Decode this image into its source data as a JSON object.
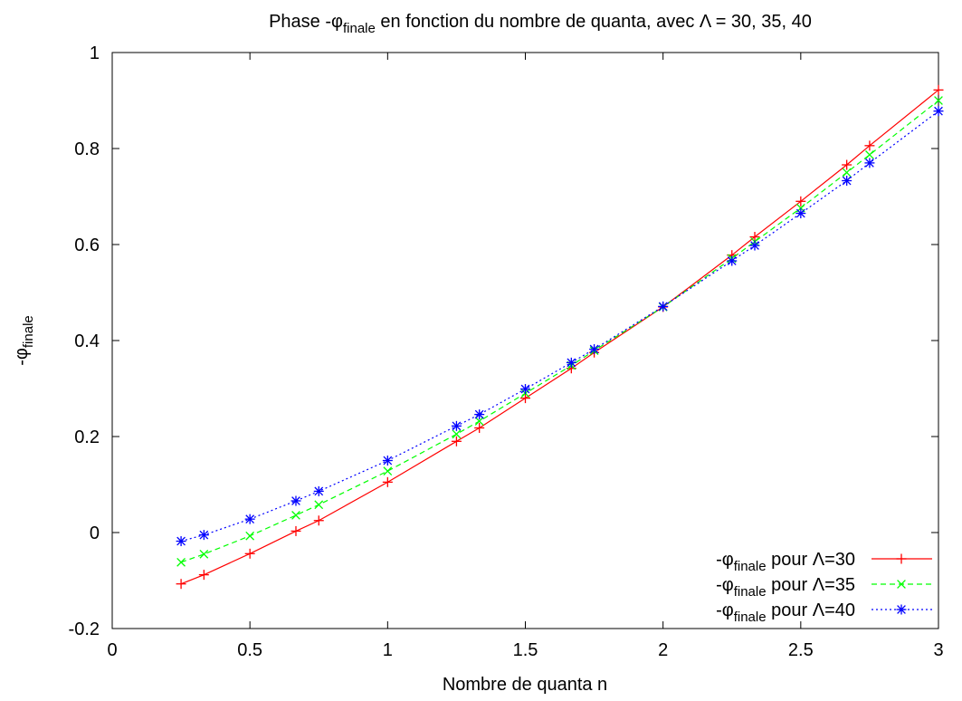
{
  "chart_data": {
    "type": "line",
    "title": {
      "prefix": "Phase -φ",
      "sub": "finale",
      "suffix": " en fonction du nombre de quanta, avec Λ = 30, 35, 40"
    },
    "xlabel": "Nombre de quanta n",
    "ylabel": {
      "main": "-φ",
      "sub": "finale"
    },
    "xlim": [
      0,
      3
    ],
    "ylim": [
      -0.2,
      1
    ],
    "xticks": [
      0,
      0.5,
      1,
      1.5,
      2,
      2.5,
      3
    ],
    "xtick_labels": [
      "0",
      "0.5",
      "1",
      "1.5",
      "2",
      "2.5",
      "3"
    ],
    "yticks": [
      -0.2,
      0,
      0.2,
      0.4,
      0.6,
      0.8,
      1
    ],
    "ytick_labels": [
      "-0.2",
      "0",
      "0.2",
      "0.4",
      "0.6",
      "0.8",
      "1"
    ],
    "grid": false,
    "legend_position": "bottom-right",
    "x": [
      0.25,
      0.333,
      0.5,
      0.667,
      0.75,
      1,
      1.25,
      1.333,
      1.5,
      1.667,
      1.75,
      2,
      2.25,
      2.333,
      2.5,
      2.667,
      2.75,
      3
    ],
    "series": [
      {
        "name": {
          "main": "-φ",
          "sub": "finale",
          "suffix": " pour Λ=30"
        },
        "color": "#ff0000",
        "marker": "plus",
        "dash": "",
        "values": [
          -0.107,
          -0.088,
          -0.044,
          0.003,
          0.025,
          0.105,
          0.19,
          0.218,
          0.28,
          0.342,
          0.375,
          0.47,
          0.578,
          0.616,
          0.69,
          0.766,
          0.806,
          0.922
        ]
      },
      {
        "name": {
          "main": "-φ",
          "sub": "finale",
          "suffix": " pour Λ=35"
        },
        "color": "#00ff00",
        "marker": "x",
        "dash": "6,4",
        "values": [
          -0.062,
          -0.045,
          -0.007,
          0.036,
          0.058,
          0.128,
          0.205,
          0.232,
          0.29,
          0.348,
          0.379,
          0.47,
          0.571,
          0.606,
          0.676,
          0.75,
          0.787,
          0.9
        ]
      },
      {
        "name": {
          "main": "-φ",
          "sub": "finale",
          "suffix": " pour Λ=40"
        },
        "color": "#0000ff",
        "marker": "star",
        "dash": "2,3",
        "values": [
          -0.018,
          -0.005,
          0.028,
          0.066,
          0.086,
          0.15,
          0.222,
          0.246,
          0.299,
          0.354,
          0.382,
          0.471,
          0.566,
          0.598,
          0.665,
          0.733,
          0.77,
          0.878
        ]
      }
    ]
  }
}
